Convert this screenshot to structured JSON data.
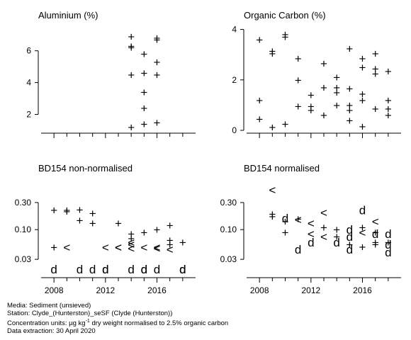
{
  "figure": {
    "footer": {
      "media": "Media: Sediment (unsieved)",
      "station": "Station: Clyde_(Hunterston)_seSF (Clyde (Hunterston))",
      "units_prefix": "Concentration units:  µg kg",
      "units_sup": "-1",
      "units_suffix": " dry weight normalised to 2.5% organic carbon",
      "extraction": "Data extraction: 30 April 2020"
    }
  },
  "chart_data": [
    {
      "type": "scatter",
      "title": "Aluminium (%)",
      "xlim": [
        2007,
        2019
      ],
      "ylim": [
        1,
        7.5
      ],
      "yticks": [
        2,
        4,
        6
      ],
      "xticks": [
        2008,
        2012,
        2016
      ],
      "show_xtick_labels": false,
      "grid": false,
      "points": [
        {
          "x": 2014,
          "y": 6.9,
          "m": "+"
        },
        {
          "x": 2014,
          "y": 6.3,
          "m": "+"
        },
        {
          "x": 2014,
          "y": 6.2,
          "m": "+"
        },
        {
          "x": 2014,
          "y": 4.5,
          "m": "+"
        },
        {
          "x": 2014,
          "y": 1.2,
          "m": "+"
        },
        {
          "x": 2015,
          "y": 5.8,
          "m": "+"
        },
        {
          "x": 2015,
          "y": 4.6,
          "m": "+"
        },
        {
          "x": 2015,
          "y": 3.4,
          "m": "+"
        },
        {
          "x": 2015,
          "y": 2.4,
          "m": "+"
        },
        {
          "x": 2015,
          "y": 1.4,
          "m": "+"
        },
        {
          "x": 2016,
          "y": 6.8,
          "m": "+"
        },
        {
          "x": 2016,
          "y": 6.7,
          "m": "+"
        },
        {
          "x": 2016,
          "y": 5.3,
          "m": "+"
        },
        {
          "x": 2016,
          "y": 4.5,
          "m": "+"
        },
        {
          "x": 2016,
          "y": 1.5,
          "m": "+"
        }
      ]
    },
    {
      "type": "scatter",
      "title": "Organic Carbon (%)",
      "xlim": [
        2007,
        2019
      ],
      "ylim": [
        0,
        4.1
      ],
      "yticks": [
        0,
        2,
        4
      ],
      "xticks": [
        2008,
        2012,
        2016
      ],
      "show_xtick_labels": false,
      "grid": false,
      "points": [
        {
          "x": 2008,
          "y": 3.6,
          "m": "+"
        },
        {
          "x": 2008,
          "y": 1.2,
          "m": "+"
        },
        {
          "x": 2008,
          "y": 0.45,
          "m": "+"
        },
        {
          "x": 2009,
          "y": 3.15,
          "m": "+"
        },
        {
          "x": 2009,
          "y": 3.05,
          "m": "+"
        },
        {
          "x": 2009,
          "y": 0.12,
          "m": "+"
        },
        {
          "x": 2010,
          "y": 3.8,
          "m": "+"
        },
        {
          "x": 2010,
          "y": 3.7,
          "m": "+"
        },
        {
          "x": 2010,
          "y": 0.25,
          "m": "+"
        },
        {
          "x": 2011,
          "y": 2.85,
          "m": "+"
        },
        {
          "x": 2011,
          "y": 2.0,
          "m": "+"
        },
        {
          "x": 2011,
          "y": 0.95,
          "m": "+"
        },
        {
          "x": 2012,
          "y": 1.4,
          "m": "+"
        },
        {
          "x": 2012,
          "y": 0.95,
          "m": "+"
        },
        {
          "x": 2012,
          "y": 0.8,
          "m": "+"
        },
        {
          "x": 2013,
          "y": 2.65,
          "m": "+"
        },
        {
          "x": 2013,
          "y": 1.7,
          "m": "+"
        },
        {
          "x": 2013,
          "y": 0.6,
          "m": "+"
        },
        {
          "x": 2014,
          "y": 2.1,
          "m": "+"
        },
        {
          "x": 2014,
          "y": 1.7,
          "m": "+"
        },
        {
          "x": 2014,
          "y": 1.5,
          "m": "+"
        },
        {
          "x": 2014,
          "y": 1.0,
          "m": "+"
        },
        {
          "x": 2015,
          "y": 3.25,
          "m": "+"
        },
        {
          "x": 2015,
          "y": 1.65,
          "m": "+"
        },
        {
          "x": 2015,
          "y": 1.0,
          "m": "+"
        },
        {
          "x": 2015,
          "y": 0.8,
          "m": "+"
        },
        {
          "x": 2015,
          "y": 0.4,
          "m": "+"
        },
        {
          "x": 2016,
          "y": 2.85,
          "m": "+"
        },
        {
          "x": 2016,
          "y": 2.5,
          "m": "+"
        },
        {
          "x": 2016,
          "y": 1.45,
          "m": "+"
        },
        {
          "x": 2016,
          "y": 1.2,
          "m": "+"
        },
        {
          "x": 2016,
          "y": 0.15,
          "m": "+"
        },
        {
          "x": 2017,
          "y": 3.05,
          "m": "+"
        },
        {
          "x": 2017,
          "y": 2.45,
          "m": "+"
        },
        {
          "x": 2017,
          "y": 2.25,
          "m": "+"
        },
        {
          "x": 2017,
          "y": 0.85,
          "m": "+"
        },
        {
          "x": 2018,
          "y": 2.35,
          "m": "+"
        },
        {
          "x": 2018,
          "y": 1.2,
          "m": "+"
        },
        {
          "x": 2018,
          "y": 0.85,
          "m": "+"
        },
        {
          "x": 2018,
          "y": 0.6,
          "m": "+"
        }
      ]
    },
    {
      "type": "scatter",
      "title": "BD154 non-normalised",
      "xlim": [
        2007,
        2019
      ],
      "ylim": [
        0.016,
        0.75
      ],
      "log_y": true,
      "yticks": [
        0.03,
        0.1,
        0.3
      ],
      "ytick_labels": [
        "0.03",
        "0.10",
        "0.30"
      ],
      "xticks": [
        2008,
        2012,
        2016
      ],
      "xtick_labels": [
        "2008",
        "2012",
        "2016"
      ],
      "grid": false,
      "points": [
        {
          "x": 2008,
          "y": 0.22,
          "m": "+"
        },
        {
          "x": 2008,
          "y": 0.049,
          "m": "+"
        },
        {
          "x": 2008,
          "y": 0.02,
          "m": "d"
        },
        {
          "x": 2009,
          "y": 0.22,
          "m": "+"
        },
        {
          "x": 2009,
          "y": 0.21,
          "m": "+"
        },
        {
          "x": 2009,
          "y": 0.049,
          "m": "<"
        },
        {
          "x": 2010,
          "y": 0.225,
          "m": "+"
        },
        {
          "x": 2010,
          "y": 0.145,
          "m": "+"
        },
        {
          "x": 2010,
          "y": 0.02,
          "m": "d"
        },
        {
          "x": 2011,
          "y": 0.195,
          "m": "+"
        },
        {
          "x": 2011,
          "y": 0.13,
          "m": "+"
        },
        {
          "x": 2011,
          "y": 0.02,
          "m": "d"
        },
        {
          "x": 2012,
          "y": 0.049,
          "m": "<"
        },
        {
          "x": 2012,
          "y": 0.02,
          "m": "d"
        },
        {
          "x": 2012,
          "y": 0.02,
          "m": "d"
        },
        {
          "x": 2013,
          "y": 0.13,
          "m": "+"
        },
        {
          "x": 2013,
          "y": 0.049,
          "m": "<"
        },
        {
          "x": 2013,
          "y": 0.049,
          "m": "<"
        },
        {
          "x": 2014,
          "y": 0.085,
          "m": "+"
        },
        {
          "x": 2014,
          "y": 0.07,
          "m": "+"
        },
        {
          "x": 2014,
          "y": 0.06,
          "m": "<"
        },
        {
          "x": 2014,
          "y": 0.055,
          "m": "<"
        },
        {
          "x": 2014,
          "y": 0.047,
          "m": "<"
        },
        {
          "x": 2014,
          "y": 0.02,
          "m": "d"
        },
        {
          "x": 2015,
          "y": 0.09,
          "m": "+"
        },
        {
          "x": 2015,
          "y": 0.049,
          "m": "<"
        },
        {
          "x": 2015,
          "y": 0.02,
          "m": "d"
        },
        {
          "x": 2015,
          "y": 0.02,
          "m": "d"
        },
        {
          "x": 2016,
          "y": 0.1,
          "m": "+"
        },
        {
          "x": 2016,
          "y": 0.049,
          "m": "<"
        },
        {
          "x": 2016,
          "y": 0.047,
          "m": "<"
        },
        {
          "x": 2016,
          "y": 0.02,
          "m": "d"
        },
        {
          "x": 2017,
          "y": 0.12,
          "m": "+"
        },
        {
          "x": 2017,
          "y": 0.065,
          "m": "+"
        },
        {
          "x": 2017,
          "y": 0.055,
          "m": "+"
        },
        {
          "x": 2017,
          "y": 0.045,
          "m": "<"
        },
        {
          "x": 2018,
          "y": 0.06,
          "m": "+"
        },
        {
          "x": 2018,
          "y": 0.02,
          "m": "d"
        },
        {
          "x": 2018,
          "y": 0.02,
          "m": "d"
        },
        {
          "x": 2018,
          "y": 0.02,
          "m": "d"
        }
      ]
    },
    {
      "type": "scatter",
      "title": "BD154 normalised",
      "xlim": [
        2007,
        2019
      ],
      "ylim": [
        0.016,
        0.75
      ],
      "log_y": true,
      "yticks": [
        0.03,
        0.1,
        0.3
      ],
      "ytick_labels": [
        "0.03",
        "0.10",
        "0.30"
      ],
      "xticks": [
        2008,
        2012,
        2016
      ],
      "xtick_labels": [
        "2008",
        "2012",
        "2016"
      ],
      "grid": false,
      "points": [
        {
          "x": 2009,
          "y": 0.5,
          "m": "<"
        },
        {
          "x": 2009,
          "y": 0.19,
          "m": "+"
        },
        {
          "x": 2009,
          "y": 0.17,
          "m": "+"
        },
        {
          "x": 2010,
          "y": 0.16,
          "m": "d"
        },
        {
          "x": 2010,
          "y": 0.14,
          "m": "+"
        },
        {
          "x": 2010,
          "y": 0.09,
          "m": "+"
        },
        {
          "x": 2011,
          "y": 0.155,
          "m": "+"
        },
        {
          "x": 2011,
          "y": 0.15,
          "m": "<"
        },
        {
          "x": 2011,
          "y": 0.045,
          "m": "d"
        },
        {
          "x": 2012,
          "y": 0.13,
          "m": "<"
        },
        {
          "x": 2012,
          "y": 0.085,
          "m": "<"
        },
        {
          "x": 2012,
          "y": 0.06,
          "m": "d"
        },
        {
          "x": 2013,
          "y": 0.2,
          "m": "<"
        },
        {
          "x": 2013,
          "y": 0.11,
          "m": "+"
        },
        {
          "x": 2013,
          "y": 0.075,
          "m": "<"
        },
        {
          "x": 2014,
          "y": 0.1,
          "m": "+"
        },
        {
          "x": 2014,
          "y": 0.075,
          "m": "+"
        },
        {
          "x": 2014,
          "y": 0.06,
          "m": "d"
        },
        {
          "x": 2015,
          "y": 0.1,
          "m": "d"
        },
        {
          "x": 2015,
          "y": 0.075,
          "m": "d"
        },
        {
          "x": 2015,
          "y": 0.055,
          "m": "+"
        },
        {
          "x": 2015,
          "y": 0.045,
          "m": "d"
        },
        {
          "x": 2016,
          "y": 0.22,
          "m": "d"
        },
        {
          "x": 2016,
          "y": 0.11,
          "m": "+"
        },
        {
          "x": 2016,
          "y": 0.09,
          "m": "<"
        },
        {
          "x": 2016,
          "y": 0.05,
          "m": "+"
        },
        {
          "x": 2017,
          "y": 0.14,
          "m": "<"
        },
        {
          "x": 2017,
          "y": 0.09,
          "m": "+"
        },
        {
          "x": 2017,
          "y": 0.085,
          "m": "d"
        },
        {
          "x": 2017,
          "y": 0.06,
          "m": "+"
        },
        {
          "x": 2017,
          "y": 0.055,
          "m": "+"
        },
        {
          "x": 2018,
          "y": 0.085,
          "m": "d"
        },
        {
          "x": 2018,
          "y": 0.06,
          "m": "+"
        },
        {
          "x": 2018,
          "y": 0.055,
          "m": "d"
        },
        {
          "x": 2018,
          "y": 0.04,
          "m": "d"
        }
      ]
    }
  ]
}
